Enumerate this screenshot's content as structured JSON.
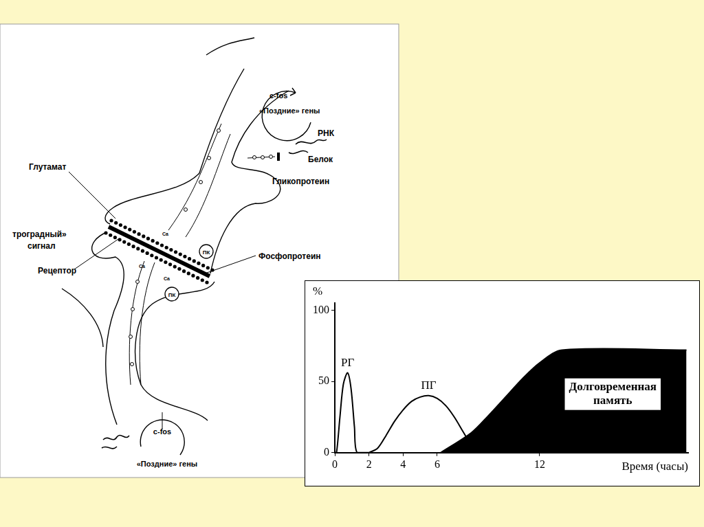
{
  "diagram": {
    "top_cell": {
      "gene": "c-fos",
      "late_genes": "«Поздние» гены",
      "rna": "РНК",
      "protein": "Белок",
      "glycoprotein": "Гликопротеин"
    },
    "synapse": {
      "transmitter": "Глутамат",
      "retrograde_signal": [
        "трoградный»",
        "сигнал"
      ],
      "receptor": "Рецептор",
      "phosphoprotein": "Фосфопротеин",
      "kinase": [
        "ПК",
        "ПК"
      ],
      "calcium": [
        "Ca",
        "Ca",
        "Ca"
      ]
    },
    "bottom_cell": {
      "gene": "c-fos",
      "late_genes": "«Поздние» гены"
    }
  },
  "chart_data": {
    "type": "line",
    "x_label": "Время (часы)",
    "y_label": "%",
    "xlim": [
      0,
      20.7
    ],
    "xticks": [
      0,
      2,
      4,
      6,
      12
    ],
    "ylim": [
      0,
      105
    ],
    "yticks": [
      0,
      50,
      100
    ],
    "grid": false,
    "series": [
      {
        "name": "РГ",
        "color": "#000000",
        "type": "line",
        "x": [
          0,
          0.1,
          0.3,
          0.5,
          0.75,
          0.95,
          1.15,
          1.3,
          2
        ],
        "values": [
          0,
          0,
          25,
          48,
          56,
          45,
          18,
          0,
          0
        ]
      },
      {
        "name": "ПГ",
        "color": "#000000",
        "type": "line",
        "x": [
          2,
          2.5,
          3,
          3.5,
          4,
          4.5,
          5,
          5.5,
          6,
          6.5,
          7,
          7.5,
          8,
          8.3
        ],
        "values": [
          0,
          3,
          12,
          22,
          30,
          36,
          39,
          40,
          38,
          33,
          25,
          15,
          5,
          0
        ]
      },
      {
        "name": "Долговременная память",
        "color": "#000000",
        "type": "area",
        "x": [
          6.2,
          8,
          9,
          10,
          11,
          12,
          13.3,
          20.6
        ],
        "values": [
          0,
          14,
          26,
          39,
          52,
          63,
          72,
          72
        ]
      }
    ]
  }
}
